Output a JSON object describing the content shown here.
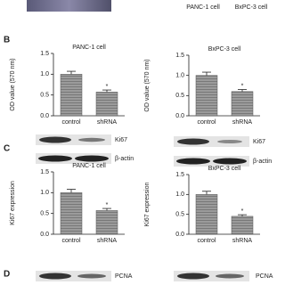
{
  "top_labels": [
    "PANC-1 cell",
    "BxPC-3 cell"
  ],
  "panels": [
    "B",
    "C",
    "D"
  ],
  "blot_labels": {
    "c_left": [
      "Ki67",
      "β-actin"
    ],
    "c_right": [
      "Ki67",
      "β-actin"
    ],
    "d_left": [
      "PCNA"
    ],
    "d_right": [
      "PCNA"
    ]
  },
  "chart_data": [
    {
      "type": "bar",
      "title": "PANC-1 cell",
      "y_label": "OD value (570 nm)",
      "categories": [
        "control",
        "shRNA"
      ],
      "values": [
        1.0,
        0.57
      ],
      "errors": [
        0.07,
        0.05
      ],
      "annotation": "*",
      "color": "#8c8c8c",
      "ylim": [
        0,
        1.5
      ],
      "yticks": [
        {
          "value": 0,
          "label": "0.0"
        },
        0.5,
        {
          "value": 1,
          "label": "1.0"
        },
        1.5
      ]
    },
    {
      "type": "bar",
      "title": "BxPC-3 cell",
      "y_label": "OD value (570 nm)",
      "categories": [
        "control",
        "shRNA"
      ],
      "values": [
        1.0,
        0.6
      ],
      "errors": [
        0.08,
        0.05
      ],
      "annotation": "*",
      "color": "#8c8c8c",
      "ylim": [
        0,
        1.5
      ],
      "yticks": [
        {
          "value": 0,
          "label": "0.0"
        },
        0.5,
        {
          "value": 1,
          "label": "1.0"
        },
        1.5
      ]
    },
    {
      "type": "bar",
      "title": "PANC-1 cell",
      "y_label": "Ki67 expression",
      "categories": [
        "control",
        "shRNA"
      ],
      "values": [
        1.0,
        0.57
      ],
      "errors": [
        0.08,
        0.05
      ],
      "annotation": "*",
      "color": "#8c8c8c",
      "ylim": [
        0,
        1.5
      ],
      "yticks": [
        {
          "value": 0,
          "label": "0.0"
        },
        0.5,
        {
          "value": 1,
          "label": "1.0"
        },
        1.5
      ]
    },
    {
      "type": "bar",
      "title": "BxPC-3 cell",
      "y_label": "Ki67 expression",
      "categories": [
        "control",
        "shRNA"
      ],
      "values": [
        1.0,
        0.45
      ],
      "errors": [
        0.08,
        0.04
      ],
      "annotation": "*",
      "color": "#8c8c8c",
      "ylim": [
        0,
        1.5
      ],
      "yticks": [
        {
          "value": 0,
          "label": "0.0"
        },
        0.5,
        {
          "value": 1,
          "label": "1.0"
        },
        1.5
      ]
    }
  ]
}
